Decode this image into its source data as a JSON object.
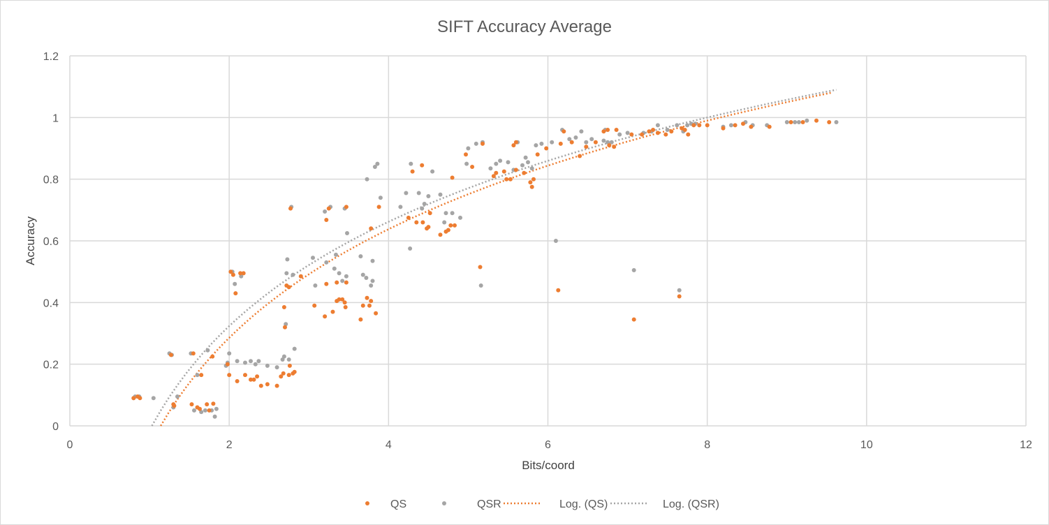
{
  "chart_data": {
    "type": "scatter",
    "title": "SIFT Accuracy Average",
    "xlabel": "Bits/coord",
    "ylabel": "Accuracy",
    "xlim": [
      0,
      12
    ],
    "ylim": [
      0,
      1.2
    ],
    "x_ticks": [
      0,
      2,
      4,
      6,
      8,
      10,
      12
    ],
    "x_tick_labels": [
      "0",
      "2",
      "4",
      "6",
      "8",
      "10",
      "12"
    ],
    "y_ticks": [
      0,
      0.2,
      0.4,
      0.6,
      0.8,
      1,
      1.2
    ],
    "y_tick_labels": [
      "0",
      "0.2",
      "0.4",
      "0.6",
      "0.8",
      "1",
      "1.2"
    ],
    "grid": true,
    "legend_position": "bottom",
    "series": [
      {
        "name": "QS",
        "kind": "scatter",
        "color": "#ED7D31",
        "points": [
          [
            0.8,
            0.09
          ],
          [
            0.85,
            0.095
          ],
          [
            0.88,
            0.09
          ],
          [
            1.27,
            0.23
          ],
          [
            1.3,
            0.07
          ],
          [
            1.31,
            0.065
          ],
          [
            1.53,
            0.07
          ],
          [
            1.55,
            0.235
          ],
          [
            1.6,
            0.06
          ],
          [
            1.63,
            0.055
          ],
          [
            1.65,
            0.165
          ],
          [
            1.72,
            0.07
          ],
          [
            1.75,
            0.05
          ],
          [
            1.79,
            0.225
          ],
          [
            1.8,
            0.072
          ],
          [
            1.98,
            0.2
          ],
          [
            2.0,
            0.165
          ],
          [
            2.02,
            0.5
          ],
          [
            2.05,
            0.49
          ],
          [
            2.08,
            0.43
          ],
          [
            2.1,
            0.145
          ],
          [
            2.14,
            0.495
          ],
          [
            2.18,
            0.495
          ],
          [
            2.2,
            0.165
          ],
          [
            2.27,
            0.15
          ],
          [
            2.31,
            0.15
          ],
          [
            2.35,
            0.16
          ],
          [
            2.4,
            0.13
          ],
          [
            2.48,
            0.135
          ],
          [
            2.6,
            0.13
          ],
          [
            2.65,
            0.16
          ],
          [
            2.68,
            0.17
          ],
          [
            2.69,
            0.385
          ],
          [
            2.7,
            0.32
          ],
          [
            2.72,
            0.455
          ],
          [
            2.75,
            0.45
          ],
          [
            2.75,
            0.165
          ],
          [
            2.76,
            0.195
          ],
          [
            2.77,
            0.705
          ],
          [
            2.8,
            0.17
          ],
          [
            2.82,
            0.175
          ],
          [
            2.9,
            0.485
          ],
          [
            3.07,
            0.39
          ],
          [
            3.2,
            0.355
          ],
          [
            3.22,
            0.668
          ],
          [
            3.22,
            0.46
          ],
          [
            3.25,
            0.705
          ],
          [
            3.3,
            0.37
          ],
          [
            3.35,
            0.465
          ],
          [
            3.35,
            0.405
          ],
          [
            3.38,
            0.41
          ],
          [
            3.42,
            0.41
          ],
          [
            3.45,
            0.4
          ],
          [
            3.46,
            0.385
          ],
          [
            3.47,
            0.465
          ],
          [
            3.47,
            0.71
          ],
          [
            3.65,
            0.345
          ],
          [
            3.68,
            0.39
          ],
          [
            3.73,
            0.415
          ],
          [
            3.76,
            0.39
          ],
          [
            3.78,
            0.405
          ],
          [
            3.78,
            0.64
          ],
          [
            3.84,
            0.365
          ],
          [
            3.88,
            0.71
          ],
          [
            4.25,
            0.675
          ],
          [
            4.3,
            0.825
          ],
          [
            4.35,
            0.66
          ],
          [
            4.42,
            0.845
          ],
          [
            4.43,
            0.66
          ],
          [
            4.48,
            0.64
          ],
          [
            4.5,
            0.645
          ],
          [
            4.52,
            0.69
          ],
          [
            4.65,
            0.62
          ],
          [
            4.72,
            0.63
          ],
          [
            4.75,
            0.635
          ],
          [
            4.78,
            0.65
          ],
          [
            4.8,
            0.805
          ],
          [
            4.83,
            0.65
          ],
          [
            4.97,
            0.88
          ],
          [
            5.05,
            0.84
          ],
          [
            5.15,
            0.515
          ],
          [
            5.18,
            0.915
          ],
          [
            5.32,
            0.81
          ],
          [
            5.35,
            0.82
          ],
          [
            5.45,
            0.825
          ],
          [
            5.48,
            0.8
          ],
          [
            5.53,
            0.8
          ],
          [
            5.57,
            0.91
          ],
          [
            5.6,
            0.83
          ],
          [
            5.6,
            0.92
          ],
          [
            5.7,
            0.82
          ],
          [
            5.78,
            0.79
          ],
          [
            5.8,
            0.775
          ],
          [
            5.82,
            0.8
          ],
          [
            5.87,
            0.88
          ],
          [
            5.98,
            0.9
          ],
          [
            6.13,
            0.44
          ],
          [
            6.16,
            0.915
          ],
          [
            6.2,
            0.955
          ],
          [
            6.3,
            0.92
          ],
          [
            6.4,
            0.875
          ],
          [
            6.48,
            0.905
          ],
          [
            6.6,
            0.92
          ],
          [
            6.7,
            0.955
          ],
          [
            6.75,
            0.96
          ],
          [
            6.77,
            0.91
          ],
          [
            6.83,
            0.905
          ],
          [
            6.86,
            0.96
          ],
          [
            7.05,
            0.945
          ],
          [
            7.08,
            0.345
          ],
          [
            7.18,
            0.945
          ],
          [
            7.27,
            0.955
          ],
          [
            7.32,
            0.96
          ],
          [
            7.38,
            0.95
          ],
          [
            7.48,
            0.945
          ],
          [
            7.55,
            0.955
          ],
          [
            7.65,
            0.42
          ],
          [
            7.68,
            0.965
          ],
          [
            7.72,
            0.96
          ],
          [
            7.76,
            0.945
          ],
          [
            7.83,
            0.975
          ],
          [
            7.9,
            0.975
          ],
          [
            8.0,
            0.975
          ],
          [
            8.2,
            0.965
          ],
          [
            8.35,
            0.975
          ],
          [
            8.45,
            0.98
          ],
          [
            8.55,
            0.97
          ],
          [
            8.78,
            0.97
          ],
          [
            9.05,
            0.985
          ],
          [
            9.2,
            0.985
          ],
          [
            9.37,
            0.99
          ],
          [
            9.53,
            0.985
          ]
        ]
      },
      {
        "name": "QSR",
        "kind": "scatter",
        "color": "#A5A5A5",
        "points": [
          [
            0.8,
            0.09
          ],
          [
            0.82,
            0.095
          ],
          [
            0.87,
            0.095
          ],
          [
            1.05,
            0.09
          ],
          [
            1.25,
            0.235
          ],
          [
            1.28,
            0.23
          ],
          [
            1.3,
            0.06
          ],
          [
            1.35,
            0.095
          ],
          [
            1.52,
            0.235
          ],
          [
            1.56,
            0.05
          ],
          [
            1.6,
            0.165
          ],
          [
            1.65,
            0.045
          ],
          [
            1.7,
            0.05
          ],
          [
            1.73,
            0.245
          ],
          [
            1.78,
            0.05
          ],
          [
            1.82,
            0.03
          ],
          [
            1.84,
            0.055
          ],
          [
            1.96,
            0.195
          ],
          [
            1.98,
            0.205
          ],
          [
            2.0,
            0.235
          ],
          [
            2.02,
            0.5
          ],
          [
            2.04,
            0.5
          ],
          [
            2.07,
            0.46
          ],
          [
            2.1,
            0.21
          ],
          [
            2.15,
            0.485
          ],
          [
            2.2,
            0.205
          ],
          [
            2.27,
            0.21
          ],
          [
            2.33,
            0.2
          ],
          [
            2.37,
            0.21
          ],
          [
            2.48,
            0.195
          ],
          [
            2.6,
            0.19
          ],
          [
            2.67,
            0.215
          ],
          [
            2.69,
            0.225
          ],
          [
            2.71,
            0.33
          ],
          [
            2.72,
            0.495
          ],
          [
            2.73,
            0.54
          ],
          [
            2.75,
            0.215
          ],
          [
            2.78,
            0.71
          ],
          [
            2.8,
            0.49
          ],
          [
            2.82,
            0.25
          ],
          [
            3.05,
            0.545
          ],
          [
            3.08,
            0.455
          ],
          [
            3.2,
            0.695
          ],
          [
            3.22,
            0.53
          ],
          [
            3.27,
            0.71
          ],
          [
            3.32,
            0.51
          ],
          [
            3.34,
            0.555
          ],
          [
            3.38,
            0.495
          ],
          [
            3.42,
            0.47
          ],
          [
            3.45,
            0.705
          ],
          [
            3.47,
            0.485
          ],
          [
            3.48,
            0.625
          ],
          [
            3.65,
            0.55
          ],
          [
            3.68,
            0.49
          ],
          [
            3.72,
            0.48
          ],
          [
            3.73,
            0.8
          ],
          [
            3.78,
            0.455
          ],
          [
            3.8,
            0.535
          ],
          [
            3.8,
            0.47
          ],
          [
            3.83,
            0.84
          ],
          [
            3.86,
            0.85
          ],
          [
            3.9,
            0.74
          ],
          [
            4.15,
            0.71
          ],
          [
            4.22,
            0.755
          ],
          [
            4.27,
            0.575
          ],
          [
            4.28,
            0.85
          ],
          [
            4.38,
            0.755
          ],
          [
            4.42,
            0.705
          ],
          [
            4.45,
            0.72
          ],
          [
            4.5,
            0.745
          ],
          [
            4.55,
            0.825
          ],
          [
            4.65,
            0.75
          ],
          [
            4.7,
            0.66
          ],
          [
            4.72,
            0.69
          ],
          [
            4.8,
            0.69
          ],
          [
            4.9,
            0.675
          ],
          [
            4.98,
            0.85
          ],
          [
            5.0,
            0.9
          ],
          [
            5.1,
            0.915
          ],
          [
            5.16,
            0.455
          ],
          [
            5.18,
            0.92
          ],
          [
            5.28,
            0.835
          ],
          [
            5.35,
            0.85
          ],
          [
            5.4,
            0.86
          ],
          [
            5.5,
            0.855
          ],
          [
            5.57,
            0.83
          ],
          [
            5.62,
            0.92
          ],
          [
            5.68,
            0.845
          ],
          [
            5.72,
            0.87
          ],
          [
            5.75,
            0.855
          ],
          [
            5.8,
            0.835
          ],
          [
            5.85,
            0.91
          ],
          [
            5.92,
            0.915
          ],
          [
            6.05,
            0.92
          ],
          [
            6.1,
            0.6
          ],
          [
            6.18,
            0.96
          ],
          [
            6.27,
            0.93
          ],
          [
            6.35,
            0.935
          ],
          [
            6.42,
            0.955
          ],
          [
            6.48,
            0.92
          ],
          [
            6.55,
            0.93
          ],
          [
            6.7,
            0.925
          ],
          [
            6.72,
            0.96
          ],
          [
            6.75,
            0.92
          ],
          [
            6.8,
            0.92
          ],
          [
            6.9,
            0.945
          ],
          [
            7.0,
            0.95
          ],
          [
            7.08,
            0.505
          ],
          [
            7.2,
            0.95
          ],
          [
            7.3,
            0.955
          ],
          [
            7.38,
            0.975
          ],
          [
            7.5,
            0.96
          ],
          [
            7.62,
            0.975
          ],
          [
            7.65,
            0.44
          ],
          [
            7.7,
            0.955
          ],
          [
            7.75,
            0.975
          ],
          [
            7.8,
            0.98
          ],
          [
            7.85,
            0.98
          ],
          [
            8.2,
            0.97
          ],
          [
            8.3,
            0.975
          ],
          [
            8.48,
            0.985
          ],
          [
            8.57,
            0.975
          ],
          [
            8.75,
            0.975
          ],
          [
            9.0,
            0.985
          ],
          [
            9.1,
            0.985
          ],
          [
            9.15,
            0.985
          ],
          [
            9.25,
            0.99
          ],
          [
            9.62,
            0.985
          ]
        ]
      },
      {
        "name": "Log. (QS)",
        "kind": "trendline",
        "color": "#ED7D31",
        "x": [
          1.14,
          9.55
        ],
        "y": [
          0,
          1.08
        ]
      },
      {
        "name": "Log. (QSR)",
        "kind": "trendline",
        "color": "#A5A5A5",
        "x": [
          1.03,
          9.62
        ],
        "y": [
          0,
          1.09
        ]
      }
    ]
  }
}
